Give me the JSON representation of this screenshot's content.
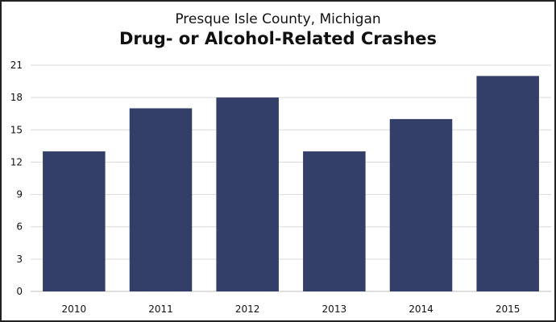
{
  "chart_data": {
    "type": "bar",
    "subtitle": "Presque Isle County, Michigan",
    "title": "Drug- or Alcohol-Related Crashes",
    "categories": [
      "2010",
      "2011",
      "2012",
      "2013",
      "2014",
      "2015"
    ],
    "values": [
      13,
      17,
      18,
      13,
      16,
      20
    ],
    "xlabel": "",
    "ylabel": "",
    "ylim": [
      0,
      21
    ],
    "yticks": [
      "0",
      "3",
      "6",
      "9",
      "12",
      "15",
      "18",
      "21"
    ],
    "grid": true,
    "bar_color": "#333F68",
    "grid_color": "#D9D9D9"
  }
}
